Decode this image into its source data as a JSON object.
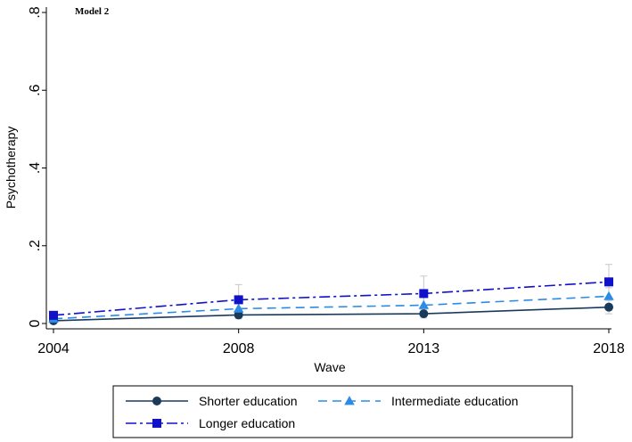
{
  "chart_data": {
    "type": "line",
    "panel_label": "Model 2",
    "xlabel": "Wave",
    "ylabel": "Psychotherapy",
    "x": [
      "2004",
      "2008",
      "2013",
      "2018"
    ],
    "ylim": [
      0,
      0.8
    ],
    "yticks": [
      0,
      0.2,
      0.4,
      0.6,
      0.8
    ],
    "ytick_labels": [
      "0",
      ".2",
      ".4",
      ".6",
      ".8"
    ],
    "grid": false,
    "legend_position": "bottom",
    "series": [
      {
        "name": "Shorter education",
        "color": "#1a3a5c",
        "marker": "circle",
        "line_style": "solid",
        "values": [
          0.007,
          0.022,
          0.025,
          0.042
        ],
        "ci": [
          [
            0.003,
            0.011
          ],
          [
            0.012,
            0.032
          ],
          [
            0.014,
            0.036
          ],
          [
            0.025,
            0.059
          ]
        ]
      },
      {
        "name": "Intermediate education",
        "color": "#2b8be6",
        "marker": "triangle",
        "line_style": "dash",
        "values": [
          0.012,
          0.038,
          0.047,
          0.07
        ],
        "ci": [
          [
            0.006,
            0.018
          ],
          [
            0.02,
            0.056
          ],
          [
            0.027,
            0.067
          ],
          [
            0.048,
            0.092
          ]
        ]
      },
      {
        "name": "Longer education",
        "color": "#1111cc",
        "marker": "square",
        "line_style": "dashdot",
        "values": [
          0.021,
          0.061,
          0.077,
          0.107
        ],
        "ci": [
          [
            0.012,
            0.03
          ],
          [
            0.028,
            0.1
          ],
          [
            0.036,
            0.122
          ],
          [
            0.062,
            0.152
          ]
        ]
      }
    ]
  }
}
